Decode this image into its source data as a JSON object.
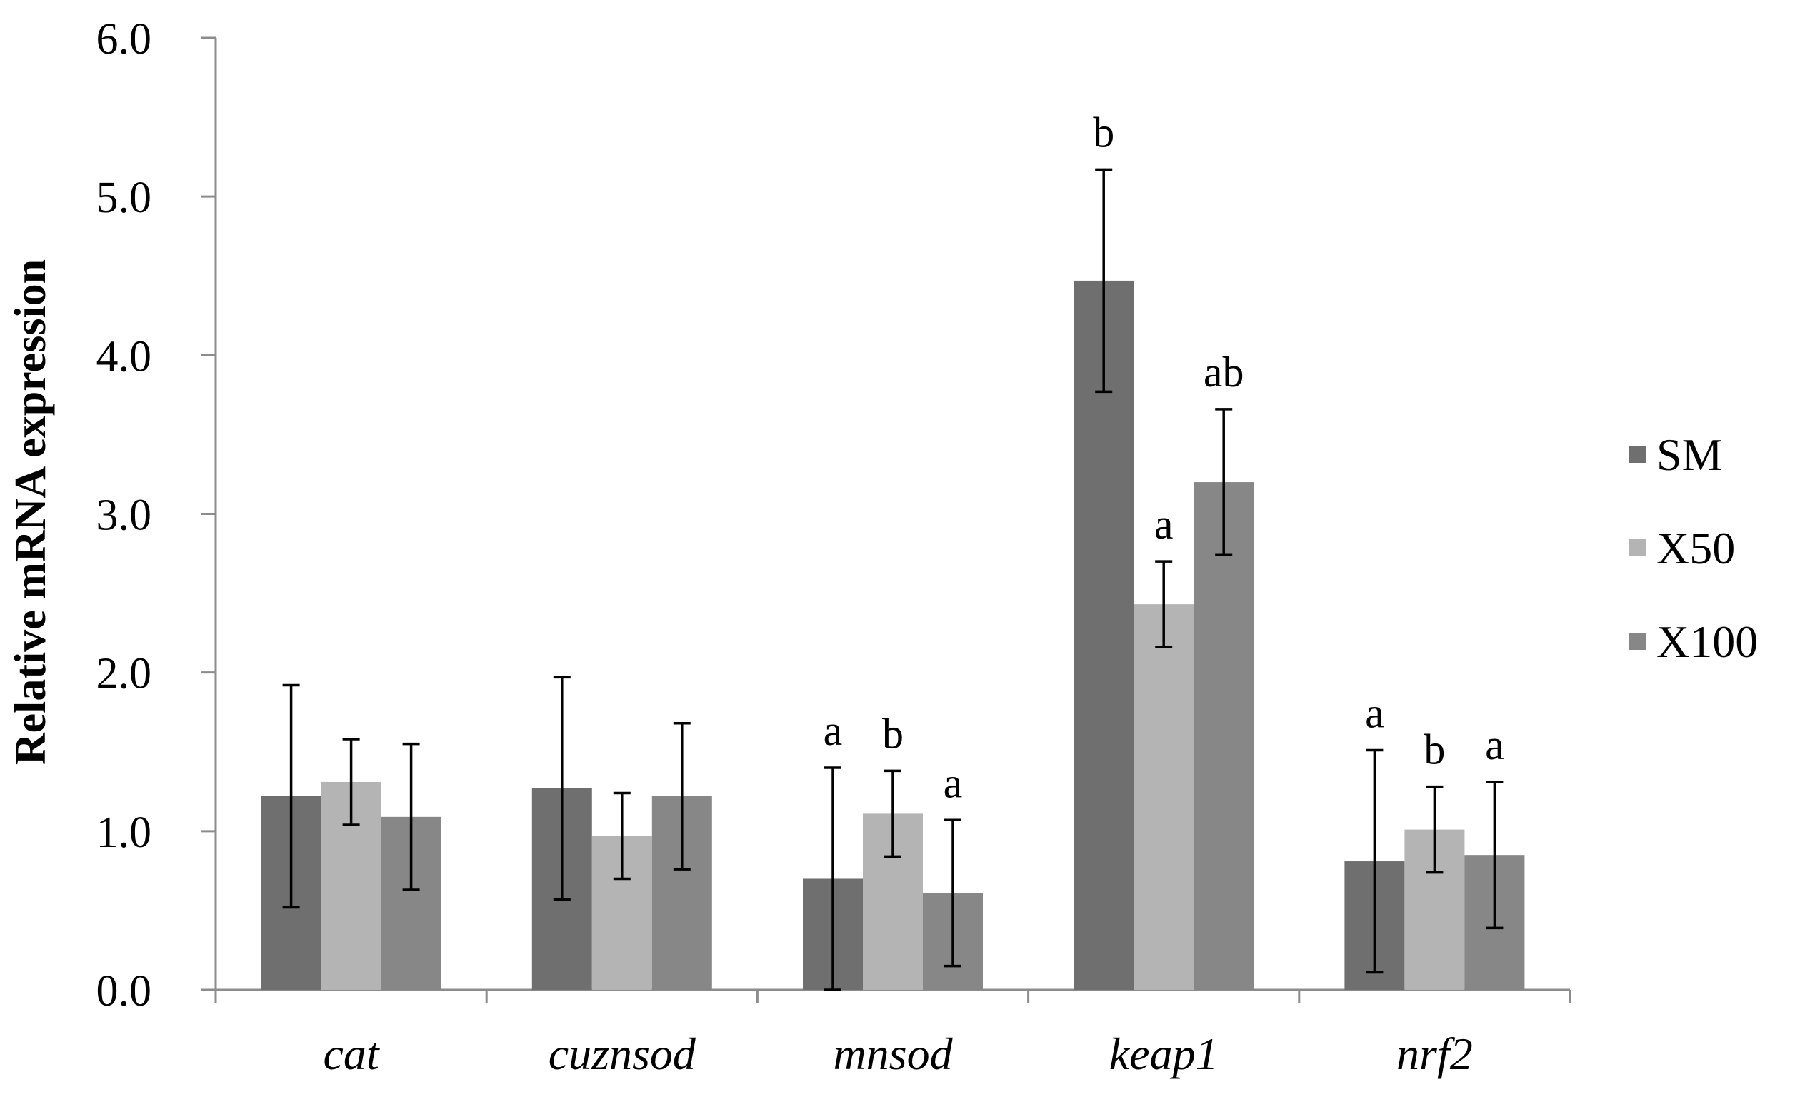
{
  "colors": {
    "axis": "#8c8c8c",
    "error_bar": "#000000",
    "background": "#ffffff"
  },
  "chart_data": {
    "type": "bar",
    "title": "",
    "xlabel": "",
    "ylabel": "Relative mRNA expression",
    "ylim": [
      0,
      6
    ],
    "ytick_values": [
      0,
      1,
      2,
      3,
      4,
      5,
      6
    ],
    "ytick_labels": [
      "0.0",
      "1.0",
      "2.0",
      "3.0",
      "4.0",
      "5.0",
      "6.0"
    ],
    "categories": [
      "cat",
      "cuznsod",
      "mnsod",
      "keap1",
      "nrf2"
    ],
    "series": [
      {
        "name": "SM",
        "color": "#6f6f6f",
        "values": [
          1.22,
          1.27,
          0.7,
          4.47,
          0.81
        ],
        "errors": [
          0.7,
          0.7,
          0.7,
          0.7,
          0.7
        ],
        "significance": [
          "",
          "",
          "a",
          "b",
          "a"
        ]
      },
      {
        "name": "X50",
        "color": "#b4b4b4",
        "values": [
          1.31,
          0.97,
          1.11,
          2.43,
          1.01
        ],
        "errors": [
          0.27,
          0.27,
          0.27,
          0.27,
          0.27
        ],
        "significance": [
          "",
          "",
          "b",
          "a",
          "b"
        ]
      },
      {
        "name": "X100",
        "color": "#878787",
        "values": [
          1.09,
          1.22,
          0.61,
          3.2,
          0.85
        ],
        "errors": [
          0.46,
          0.46,
          0.46,
          0.46,
          0.46
        ],
        "significance": [
          "",
          "",
          "a",
          "ab",
          "a"
        ]
      }
    ],
    "legend_position": "right",
    "grid": false
  }
}
